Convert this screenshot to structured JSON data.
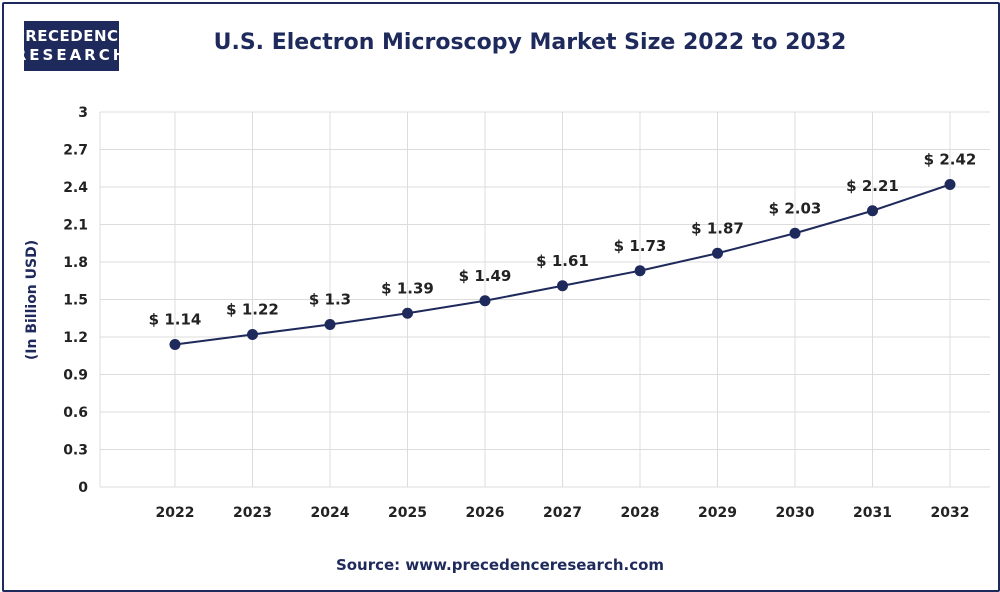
{
  "logo": {
    "line1": "PRECEDENCE",
    "line2": "RESEARCH"
  },
  "source": "Source: www.precedenceresearch.com",
  "colors": {
    "brand": "#1f2a5c",
    "grid": "#dcdcdc",
    "background": "#ffffff"
  },
  "chart_data": {
    "type": "line",
    "title": "U.S. Electron Microscopy Market Size 2022 to 2032",
    "ylabel": "(In Billion USD)",
    "xlabel": "",
    "categories": [
      "2022",
      "2023",
      "2024",
      "2025",
      "2026",
      "2027",
      "2028",
      "2029",
      "2030",
      "2031",
      "2032"
    ],
    "series": [
      {
        "values": [
          1.14,
          1.22,
          1.3,
          1.39,
          1.49,
          1.61,
          1.73,
          1.87,
          2.03,
          2.21,
          2.42
        ]
      }
    ],
    "data_labels": [
      "$ 1.14",
      "$ 1.22",
      "$ 1.3",
      "$ 1.39",
      "$ 1.49",
      "$ 1.61",
      "$ 1.73",
      "$ 1.87",
      "$ 2.03",
      "$ 2.21",
      "$ 2.42"
    ],
    "ylim": [
      0,
      3
    ],
    "yticks": [
      "0",
      "0.3",
      "0.6",
      "0.9",
      "1.2",
      "1.5",
      "1.8",
      "2.1",
      "2.4",
      "2.7",
      "3"
    ],
    "grid": true,
    "legend": "none"
  }
}
